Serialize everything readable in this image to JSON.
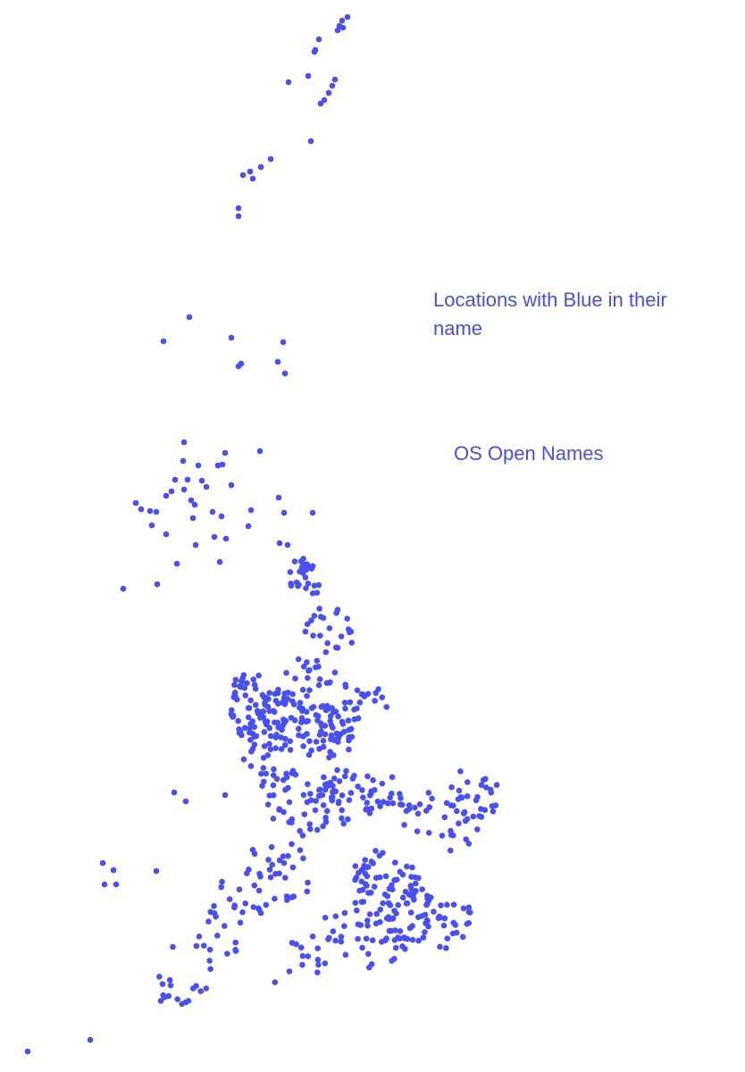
{
  "title": "Locations with Blue in their name",
  "source": "OS Open Names",
  "point_color": "#4a4ff0",
  "point_count": 620
}
